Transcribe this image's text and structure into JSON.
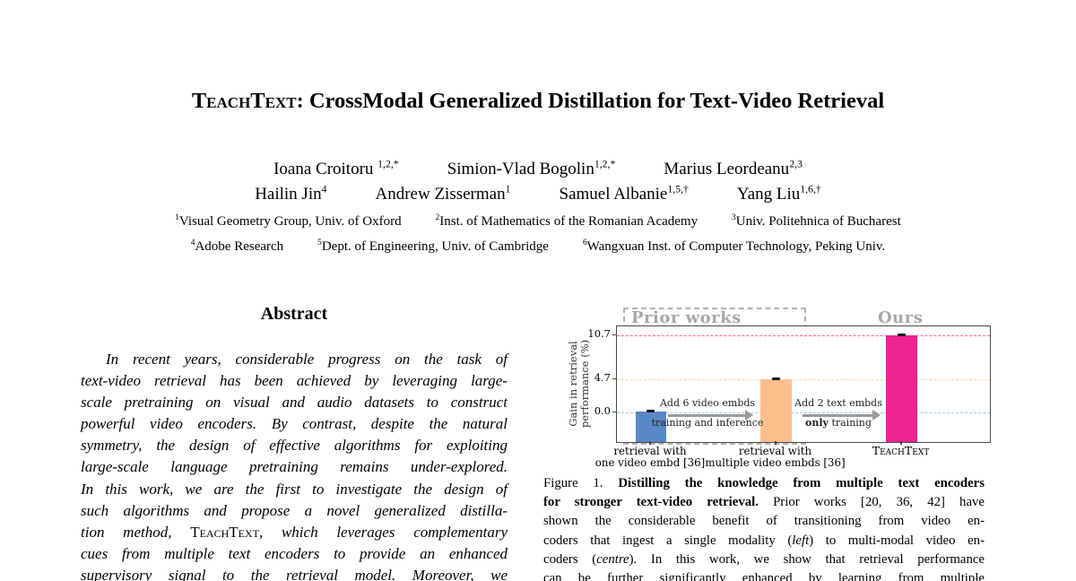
{
  "title": {
    "brand": "TeachText",
    "rest": ": CrossModal Generalized Distillation for Text-Video Retrieval"
  },
  "authors": {
    "row1": [
      {
        "name": "Ioana Croitoru ",
        "sup": "1,2,*"
      },
      {
        "name": "Simion-Vlad Bogolin",
        "sup": "1,2,*"
      },
      {
        "name": "Marius Leordeanu",
        "sup": "2,3"
      }
    ],
    "row2": [
      {
        "name": "Hailin Jin",
        "sup": "4"
      },
      {
        "name": "Andrew Zisserman",
        "sup": "1"
      },
      {
        "name": "Samuel Albanie",
        "sup": "1,5,†"
      },
      {
        "name": "Yang Liu",
        "sup": "1,6,†"
      }
    ]
  },
  "affiliations": {
    "row1": [
      {
        "sup": "1",
        "text": "Visual Geometry Group, Univ. of Oxford"
      },
      {
        "sup": "2",
        "text": "Inst. of Mathematics of the Romanian Academy"
      },
      {
        "sup": "3",
        "text": "Univ. Politehnica of Bucharest"
      }
    ],
    "row2": [
      {
        "sup": "4",
        "text": "Adobe Research"
      },
      {
        "sup": "5",
        "text": "Dept. of Engineering, Univ. of Cambridge"
      },
      {
        "sup": "6",
        "text": "Wangxuan Inst. of Computer Technology, Peking Univ."
      }
    ]
  },
  "abstract": {
    "heading": "Abstract",
    "l1": "In recent years, considerable progress on the task of",
    "l2": "text-video retrieval has been achieved by leveraging large-",
    "l3": "scale pretraining on visual and audio datasets to construct",
    "l4": "powerful video encoders. By contrast, despite the natural",
    "l5": "symmetry, the design of effective algorithms for exploiting",
    "l6": "large-scale language pretraining remains under-explored.",
    "l7": "In this work, we are the first to investigate the design of",
    "l8": "such algorithms and propose a novel generalized distilla-",
    "l9a": "tion method, ",
    "l9b": "TeachText",
    "l9c": ", which leverages complementary",
    "l10": "cues from multiple text encoders to provide an enhanced",
    "l11": "supervisory signal to the retrieval model.  Moreover, we"
  },
  "figure": {
    "region_prior": "Prior works",
    "region_ours": "Ours",
    "ylabel_l1": "Gain in retrieval",
    "ylabel_l2": "performance (%)",
    "ytick_107": "10.7",
    "ytick_47": "4.7",
    "ytick_00": "0.0",
    "arrow1_l1": "Add 6 video embds",
    "arrow1_l2": "training and inference",
    "arrow2_l1": "Add 2 text embds",
    "arrow2_l2_bold": "only",
    "arrow2_l2_rest": " training",
    "x1_l1": "retrieval with",
    "x1_l2": "one video embd [36]",
    "x2_l1": "retrieval with",
    "x2_l2": "multiple video embds [36]",
    "x3": "TeachText"
  },
  "chart_data": {
    "type": "bar",
    "title": "",
    "categories": [
      "retrieval with one video embd [36]",
      "retrieval with multiple video embds [36]",
      "TeachText"
    ],
    "values": [
      0.0,
      4.7,
      10.7
    ],
    "bar_colors": [
      "#5A87C5",
      "#FCBF8B",
      "#ED2490"
    ],
    "error_bars": [
      0.1,
      0.1,
      0.1
    ],
    "xlabel": "",
    "ylabel": "Gain in retrieval performance (%)",
    "yticks": [
      0.0,
      4.7,
      10.7
    ],
    "ylim": [
      -4.1,
      11.9
    ],
    "grid": "horizontal-dashed-at-yticks",
    "legend_position": "none",
    "reference_lines": [
      {
        "y": 10.7,
        "color": "#F95FA8",
        "style": "dashed"
      },
      {
        "y": 4.7,
        "color": "#FBD9B4",
        "style": "dashed"
      },
      {
        "y": 0.0,
        "color": "#A6C8EB",
        "style": "dashed"
      }
    ],
    "regions": [
      {
        "label": "Prior works",
        "bars": [
          0,
          1
        ],
        "box_style": "gray-dashed"
      },
      {
        "label": "Ours",
        "bars": [
          2
        ],
        "box_style": "none"
      }
    ],
    "annotations": [
      {
        "between": [
          0,
          1
        ],
        "line1": "Add 6 video embds",
        "line2": "training and inference"
      },
      {
        "between": [
          1,
          2
        ],
        "line1": "Add 2 text embds",
        "line2": "only training",
        "line2_bold_word": "only"
      }
    ]
  },
  "caption": {
    "l1a": "Figure 1. ",
    "l1b": "Distilling the knowledge from multiple text encoders",
    "l2a": "for stronger text-video retrieval.",
    "l2b": " Prior works [20, 36, 42] have",
    "l3": "shown the considerable benefit of transitioning from video en-",
    "l4a": "coders that ingest a single modality (",
    "l4b": "left",
    "l4c": ") to multi-modal video en-",
    "l5a": "coders (",
    "l5b": "centre",
    "l5c": ").  In this work, we show that retrieval performance",
    "l6": "can be further significantly enhanced by learning from multiple"
  }
}
